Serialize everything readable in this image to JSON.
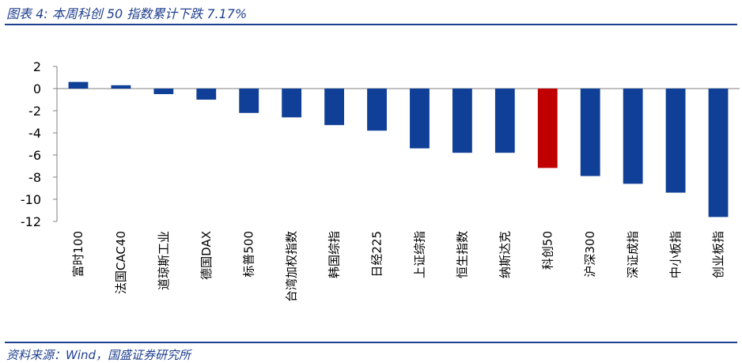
{
  "header": {
    "title": "图表 4:  本周科创 50 指数累计下跌 7.17%"
  },
  "footer": {
    "source": "资料来源：Wind，国盛证券研究所"
  },
  "colors": {
    "bar": "#0f3f96",
    "highlight": "#c00000",
    "rule": "#1f3f8f"
  },
  "chart_data": {
    "type": "bar",
    "title": "",
    "xlabel": "",
    "ylabel": "",
    "ylim": [
      -12,
      2
    ],
    "yticks": [
      2,
      0,
      -2,
      -4,
      -6,
      -8,
      -10,
      -12
    ],
    "grid": false,
    "categories": [
      "富时100",
      "法国CAC40",
      "道琼斯工业",
      "德国DAX",
      "标普500",
      "台湾加权指数",
      "韩国综指",
      "日经225",
      "上证综指",
      "恒生指数",
      "纳斯达克",
      "科创50",
      "沪深300",
      "深证成指",
      "中小板指",
      "创业板指"
    ],
    "values": [
      0.6,
      0.3,
      -0.5,
      -1.0,
      -2.2,
      -2.6,
      -3.3,
      -3.8,
      -5.4,
      -5.8,
      -5.8,
      -7.17,
      -7.9,
      -8.6,
      -9.4,
      -11.6
    ],
    "highlight": "科创50"
  }
}
